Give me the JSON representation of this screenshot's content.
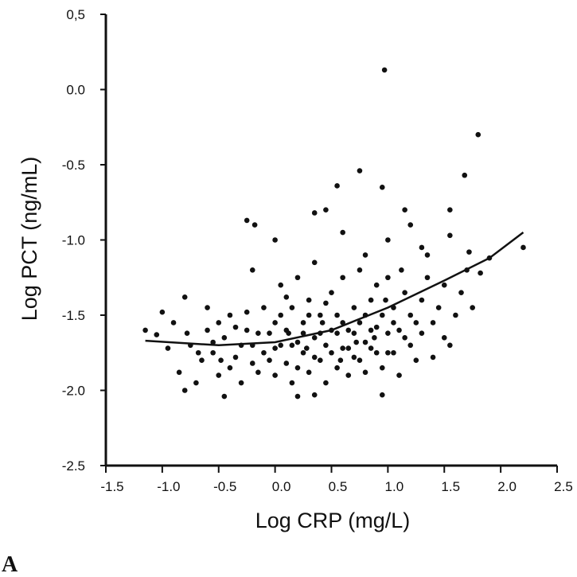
{
  "chart_data": {
    "type": "scatter",
    "title": "",
    "xlabel": "Log CRP (mg/L)",
    "ylabel": "Log PCT (ng/mL)",
    "panel_label": "A",
    "xlim": [
      -1.5,
      2.5
    ],
    "ylim": [
      -2.5,
      0.5
    ],
    "xticks": [
      -1.5,
      -1.0,
      -0.5,
      0.0,
      0.5,
      1.0,
      1.5,
      2.0,
      2.5
    ],
    "xtick_labels": [
      "-1.5",
      "-1.0",
      "-0.5",
      "0.0",
      "0.5",
      "1.0",
      "1.5",
      "2.0",
      "2.5"
    ],
    "yticks": [
      0.5,
      0.0,
      -0.5,
      -1.0,
      -1.5,
      -2.0,
      -2.5
    ],
    "ytick_labels": [
      "0,5",
      "0.0",
      "-0.5",
      "-1.0",
      "-1.5",
      "-2.0",
      "-2.5"
    ],
    "grid": false,
    "point_color": "#111111",
    "fit_curve": [
      [
        -1.15,
        -1.67
      ],
      [
        -0.5,
        -1.7
      ],
      [
        0.0,
        -1.68
      ],
      [
        0.5,
        -1.6
      ],
      [
        1.0,
        -1.45
      ],
      [
        1.5,
        -1.27
      ],
      [
        1.9,
        -1.12
      ],
      [
        2.2,
        -0.95
      ]
    ],
    "points": [
      [
        0.97,
        0.13
      ],
      [
        1.8,
        -0.3
      ],
      [
        1.68,
        -0.57
      ],
      [
        0.75,
        -0.54
      ],
      [
        0.55,
        -0.64
      ],
      [
        0.95,
        -0.65
      ],
      [
        1.15,
        -0.8
      ],
      [
        1.55,
        -0.8
      ],
      [
        0.35,
        -0.82
      ],
      [
        0.45,
        -0.8
      ],
      [
        -0.25,
        -0.87
      ],
      [
        -0.18,
        -0.9
      ],
      [
        2.2,
        -1.05
      ],
      [
        1.55,
        -0.97
      ],
      [
        0.0,
        -1.0
      ],
      [
        1.72,
        -1.08
      ],
      [
        1.9,
        -1.12
      ],
      [
        1.82,
        -1.22
      ],
      [
        1.0,
        -1.0
      ],
      [
        0.6,
        -0.95
      ],
      [
        1.2,
        -0.9
      ],
      [
        0.8,
        -1.1
      ],
      [
        1.3,
        -1.05
      ],
      [
        0.95,
        -2.03
      ],
      [
        -0.45,
        -2.04
      ],
      [
        0.2,
        -2.04
      ],
      [
        0.35,
        -2.03
      ],
      [
        -0.8,
        -2.0
      ],
      [
        -1.15,
        -1.6
      ],
      [
        -1.0,
        -1.48
      ],
      [
        -0.8,
        -1.38
      ],
      [
        -0.6,
        -1.6
      ],
      [
        -1.05,
        -1.63
      ],
      [
        -0.95,
        -1.72
      ],
      [
        -0.85,
        -1.88
      ],
      [
        -0.75,
        -1.7
      ],
      [
        -0.7,
        -1.95
      ],
      [
        -0.65,
        -1.8
      ],
      [
        -0.55,
        -1.75
      ],
      [
        -0.5,
        -1.9
      ],
      [
        -0.45,
        -1.65
      ],
      [
        -0.4,
        -1.5
      ],
      [
        -0.35,
        -1.78
      ],
      [
        -0.3,
        -1.95
      ],
      [
        -0.25,
        -1.6
      ],
      [
        -0.2,
        -1.2
      ],
      [
        -0.2,
        -1.7
      ],
      [
        -0.15,
        -1.88
      ],
      [
        -0.1,
        -1.45
      ],
      [
        -0.1,
        -1.75
      ],
      [
        -0.05,
        -1.62
      ],
      [
        0.0,
        -1.9
      ],
      [
        0.0,
        -1.55
      ],
      [
        0.05,
        -1.7
      ],
      [
        0.05,
        -1.3
      ],
      [
        0.1,
        -1.82
      ],
      [
        0.1,
        -1.6
      ],
      [
        0.15,
        -1.45
      ],
      [
        0.15,
        -1.95
      ],
      [
        0.2,
        -1.68
      ],
      [
        0.2,
        -1.25
      ],
      [
        0.25,
        -1.75
      ],
      [
        0.25,
        -1.55
      ],
      [
        0.3,
        -1.88
      ],
      [
        0.3,
        -1.4
      ],
      [
        0.35,
        -1.65
      ],
      [
        0.35,
        -1.15
      ],
      [
        0.4,
        -1.8
      ],
      [
        0.4,
        -1.5
      ],
      [
        0.45,
        -1.95
      ],
      [
        0.45,
        -1.7
      ],
      [
        0.5,
        -1.35
      ],
      [
        0.5,
        -1.6
      ],
      [
        0.55,
        -1.85
      ],
      [
        0.55,
        -1.5
      ],
      [
        0.6,
        -1.72
      ],
      [
        0.6,
        -1.25
      ],
      [
        0.65,
        -1.6
      ],
      [
        0.65,
        -1.9
      ],
      [
        0.7,
        -1.45
      ],
      [
        0.7,
        -1.78
      ],
      [
        0.75,
        -1.55
      ],
      [
        0.75,
        -1.2
      ],
      [
        0.8,
        -1.68
      ],
      [
        0.8,
        -1.88
      ],
      [
        0.85,
        -1.4
      ],
      [
        0.85,
        -1.6
      ],
      [
        0.9,
        -1.75
      ],
      [
        0.9,
        -1.3
      ],
      [
        0.95,
        -1.5
      ],
      [
        0.95,
        -1.85
      ],
      [
        1.0,
        -1.62
      ],
      [
        1.0,
        -1.25
      ],
      [
        1.05,
        -1.75
      ],
      [
        1.05,
        -1.45
      ],
      [
        1.1,
        -1.6
      ],
      [
        1.1,
        -1.9
      ],
      [
        1.15,
        -1.35
      ],
      [
        1.2,
        -1.7
      ],
      [
        1.2,
        -1.5
      ],
      [
        1.25,
        -1.8
      ],
      [
        1.3,
        -1.4
      ],
      [
        1.3,
        -1.62
      ],
      [
        1.35,
        -1.25
      ],
      [
        1.4,
        -1.55
      ],
      [
        1.4,
        -1.78
      ],
      [
        1.45,
        -1.45
      ],
      [
        1.5,
        -1.65
      ],
      [
        1.5,
        -1.3
      ],
      [
        1.55,
        -1.7
      ],
      [
        1.6,
        -1.5
      ],
      [
        1.65,
        -1.35
      ],
      [
        1.7,
        -1.2
      ],
      [
        1.75,
        -1.45
      ],
      [
        -0.6,
        -1.45
      ],
      [
        -0.55,
        -1.68
      ],
      [
        -0.5,
        -1.55
      ],
      [
        -0.4,
        -1.85
      ],
      [
        -0.35,
        -1.58
      ],
      [
        -0.3,
        -1.7
      ],
      [
        -0.25,
        -1.48
      ],
      [
        -0.2,
        -1.82
      ],
      [
        -0.15,
        -1.62
      ],
      [
        -0.05,
        -1.8
      ],
      [
        0.05,
        -1.5
      ],
      [
        0.1,
        -1.38
      ],
      [
        0.15,
        -1.7
      ],
      [
        0.2,
        -1.85
      ],
      [
        0.25,
        -1.62
      ],
      [
        0.3,
        -1.5
      ],
      [
        0.35,
        -1.78
      ],
      [
        0.4,
        -1.62
      ],
      [
        0.45,
        -1.42
      ],
      [
        0.5,
        -1.75
      ],
      [
        0.55,
        -1.62
      ],
      [
        0.6,
        -1.55
      ],
      [
        0.65,
        -1.72
      ],
      [
        0.7,
        -1.62
      ],
      [
        0.75,
        -1.8
      ],
      [
        0.8,
        -1.5
      ],
      [
        0.85,
        -1.72
      ],
      [
        0.9,
        -1.58
      ],
      [
        1.0,
        -1.75
      ],
      [
        1.05,
        -1.55
      ],
      [
        1.15,
        -1.65
      ],
      [
        1.25,
        -1.55
      ],
      [
        -0.9,
        -1.55
      ],
      [
        -0.78,
        -1.62
      ],
      [
        -0.68,
        -1.75
      ],
      [
        -0.48,
        -1.8
      ],
      [
        0.0,
        -1.72
      ],
      [
        0.12,
        -1.62
      ],
      [
        0.28,
        -1.72
      ],
      [
        0.42,
        -1.55
      ],
      [
        0.58,
        -1.8
      ],
      [
        0.72,
        -1.68
      ],
      [
        0.88,
        -1.65
      ],
      [
        0.98,
        -1.4
      ],
      [
        1.12,
        -1.2
      ],
      [
        1.35,
        -1.1
      ]
    ]
  }
}
